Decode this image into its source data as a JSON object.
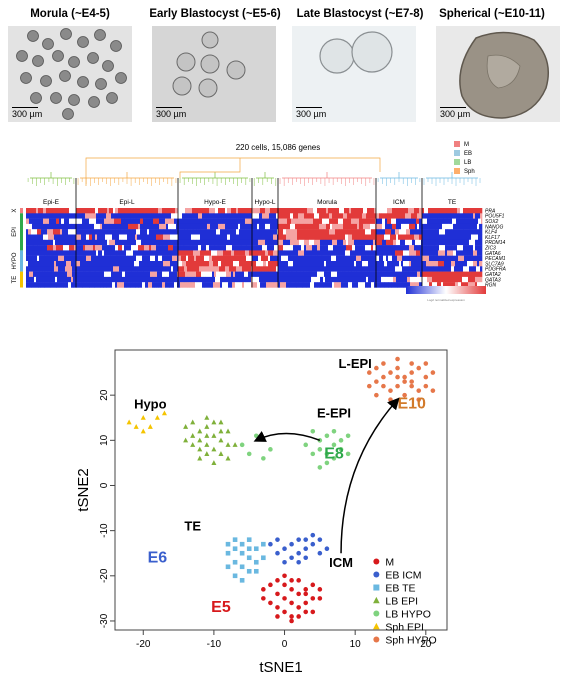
{
  "micrographs": [
    {
      "title": "Morula (~E4-5)",
      "scale": "300 µm",
      "bg": "#e4e4e4"
    },
    {
      "title": "Early Blastocyst (~E5-6)",
      "scale": "300 µm",
      "bg": "#dadada"
    },
    {
      "title": "Late Blastocyst (~E7-8)",
      "scale": "300 µm",
      "bg": "#ecf0f2"
    },
    {
      "title": "Spherical (~E10-11)",
      "scale": "300 µm",
      "bg": "#e6e6e6"
    }
  ],
  "heatmap": {
    "title": "220 cells, 15,086 genes",
    "legend": [
      {
        "label": "M",
        "color": "#f08080"
      },
      {
        "label": "EB",
        "color": "#9ecae1"
      },
      {
        "label": "LB",
        "color": "#a1d99b"
      },
      {
        "label": "Sph",
        "color": "#fdae6b"
      }
    ],
    "clusters": [
      "Epi-E",
      "Epi-L",
      "Hypo-E",
      "Hypo-L",
      "Morula",
      "ICM",
      "TE"
    ],
    "row_groups": [
      "X",
      "EPI",
      "HYPO",
      "TE"
    ],
    "genes": [
      "PRA",
      "POU5F1",
      "SOX2",
      "NANOG",
      "KLF4",
      "KLF17",
      "PRDM14",
      "ZIC3",
      "GATA6",
      "PECAM1",
      "SLC7A9",
      "PDGFRA",
      "GATA2",
      "GATA3",
      "RGN"
    ],
    "colorbar_label": "Log2 normalized expression"
  },
  "chart_data": {
    "type": "scatter",
    "xlabel": "tSNE1",
    "ylabel": "tSNE2",
    "xlim": [
      -24,
      23
    ],
    "ylim": [
      -32,
      30
    ],
    "xticks": [
      -20,
      -10,
      0,
      10,
      20
    ],
    "yticks": [
      -30,
      -20,
      -10,
      0,
      10,
      20
    ],
    "legend_position": "bottom-right",
    "series": [
      {
        "name": "M",
        "marker": "circle",
        "color": "#d7191c",
        "points": [
          [
            -3,
            -23
          ],
          [
            -2,
            -22
          ],
          [
            -1,
            -24
          ],
          [
            0,
            -22
          ],
          [
            1,
            -23
          ],
          [
            2,
            -21
          ],
          [
            3,
            -24
          ],
          [
            4,
            -22
          ],
          [
            5,
            -23
          ],
          [
            -2,
            -26
          ],
          [
            -1,
            -27
          ],
          [
            0,
            -25
          ],
          [
            1,
            -26
          ],
          [
            2,
            -27
          ],
          [
            3,
            -26
          ],
          [
            4,
            -28
          ],
          [
            5,
            -25
          ],
          [
            0,
            -20
          ],
          [
            1,
            -21
          ],
          [
            -1,
            -21
          ],
          [
            2,
            -29
          ],
          [
            3,
            -28
          ],
          [
            1,
            -29
          ],
          [
            0,
            -28
          ],
          [
            -1,
            -29
          ],
          [
            4,
            -25
          ],
          [
            3,
            -23
          ],
          [
            -3,
            -25
          ],
          [
            2,
            -24
          ],
          [
            1,
            -30
          ]
        ]
      },
      {
        "name": "EB ICM",
        "marker": "circle",
        "color": "#3a5fcd",
        "points": [
          [
            -2,
            -13
          ],
          [
            -1,
            -12
          ],
          [
            0,
            -14
          ],
          [
            1,
            -13
          ],
          [
            2,
            -12
          ],
          [
            3,
            -14
          ],
          [
            4,
            -13
          ],
          [
            5,
            -15
          ],
          [
            1,
            -16
          ],
          [
            2,
            -15
          ],
          [
            3,
            -16
          ],
          [
            4,
            -11
          ],
          [
            0,
            -17
          ],
          [
            -1,
            -15
          ],
          [
            5,
            -12
          ],
          [
            6,
            -14
          ],
          [
            2,
            -17
          ],
          [
            3,
            -12
          ]
        ]
      },
      {
        "name": "EB TE",
        "marker": "square",
        "color": "#6ab8e0",
        "points": [
          [
            -7,
            -12
          ],
          [
            -6,
            -13
          ],
          [
            -5,
            -12
          ],
          [
            -4,
            -14
          ],
          [
            -6,
            -15
          ],
          [
            -5,
            -16
          ],
          [
            -7,
            -17
          ],
          [
            -8,
            -15
          ],
          [
            -4,
            -17
          ],
          [
            -6,
            -18
          ],
          [
            -5,
            -19
          ],
          [
            -7,
            -20
          ],
          [
            -8,
            -18
          ],
          [
            -3,
            -16
          ],
          [
            -4,
            -19
          ],
          [
            -6,
            -21
          ],
          [
            -7,
            -14
          ],
          [
            -5,
            -14
          ],
          [
            -3,
            -13
          ],
          [
            -8,
            -13
          ]
        ]
      },
      {
        "name": "LB EPI",
        "marker": "triangle",
        "color": "#7fb03a",
        "points": [
          [
            -14,
            13
          ],
          [
            -13,
            11
          ],
          [
            -12,
            12
          ],
          [
            -11,
            13
          ],
          [
            -10,
            11
          ],
          [
            -9,
            12
          ],
          [
            -13,
            9
          ],
          [
            -12,
            8
          ],
          [
            -11,
            9
          ],
          [
            -10,
            8
          ],
          [
            -9,
            10
          ],
          [
            -8,
            9
          ],
          [
            -12,
            6
          ],
          [
            -11,
            7
          ],
          [
            -10,
            5
          ],
          [
            -9,
            7
          ],
          [
            -13,
            14
          ],
          [
            -11,
            15
          ],
          [
            -10,
            14
          ],
          [
            -8,
            12
          ],
          [
            -12,
            10
          ],
          [
            -9,
            14
          ],
          [
            -14,
            10
          ],
          [
            -8,
            6
          ],
          [
            -7,
            9
          ],
          [
            -11,
            11
          ]
        ]
      },
      {
        "name": "LB HYPO",
        "marker": "circle",
        "color": "#7fd37f",
        "points": [
          [
            -6,
            9
          ],
          [
            -4,
            11
          ],
          [
            -2,
            8
          ],
          [
            -3,
            6
          ],
          [
            -5,
            7
          ],
          [
            4,
            12
          ],
          [
            5,
            10
          ],
          [
            6,
            11
          ],
          [
            7,
            9
          ],
          [
            8,
            10
          ],
          [
            5,
            8
          ],
          [
            6,
            7
          ],
          [
            7,
            6
          ],
          [
            8,
            8
          ],
          [
            4,
            7
          ],
          [
            6,
            5
          ],
          [
            9,
            11
          ],
          [
            3,
            9
          ],
          [
            5,
            4
          ],
          [
            7,
            12
          ],
          [
            9,
            7
          ]
        ]
      },
      {
        "name": "Sph EPI",
        "marker": "triangle",
        "color": "#f5c400",
        "points": [
          [
            -22,
            14
          ],
          [
            -21,
            13
          ],
          [
            -20,
            15
          ],
          [
            -19,
            13
          ],
          [
            -18,
            15
          ],
          [
            -20,
            12
          ],
          [
            -17,
            16
          ]
        ]
      },
      {
        "name": "Sph HYPO",
        "marker": "circle",
        "color": "#e6774a",
        "points": [
          [
            12,
            25
          ],
          [
            13,
            26
          ],
          [
            14,
            24
          ],
          [
            15,
            25
          ],
          [
            16,
            26
          ],
          [
            17,
            24
          ],
          [
            18,
            25
          ],
          [
            19,
            26
          ],
          [
            20,
            24
          ],
          [
            21,
            25
          ],
          [
            13,
            23
          ],
          [
            14,
            22
          ],
          [
            15,
            21
          ],
          [
            16,
            22
          ],
          [
            17,
            23
          ],
          [
            18,
            22
          ],
          [
            19,
            21
          ],
          [
            20,
            22
          ],
          [
            14,
            27
          ],
          [
            16,
            28
          ],
          [
            18,
            27
          ],
          [
            20,
            27
          ],
          [
            15,
            19
          ],
          [
            17,
            20
          ],
          [
            19,
            19
          ],
          [
            21,
            21
          ],
          [
            12,
            22
          ],
          [
            16,
            24
          ],
          [
            18,
            23
          ],
          [
            13,
            20
          ]
        ]
      }
    ],
    "annotations": [
      {
        "text": "L-EPI",
        "x": 10,
        "y": 26,
        "color": "#000000"
      },
      {
        "text": "Hypo",
        "x": -19,
        "y": 17,
        "color": "#000000"
      },
      {
        "text": "E-EPI",
        "x": 7,
        "y": 15,
        "color": "#000000"
      },
      {
        "text": "E10",
        "x": 18,
        "y": 17,
        "color": "#d27a2a"
      },
      {
        "text": "E8",
        "x": 7,
        "y": 6,
        "color": "#2ea84a"
      },
      {
        "text": "TE",
        "x": -13,
        "y": -10,
        "color": "#000000"
      },
      {
        "text": "E6",
        "x": -18,
        "y": -17,
        "color": "#3a5fcd"
      },
      {
        "text": "ICM",
        "x": 8,
        "y": -18,
        "color": "#000000"
      },
      {
        "text": "E5",
        "x": -9,
        "y": -28,
        "color": "#d7191c"
      }
    ]
  }
}
